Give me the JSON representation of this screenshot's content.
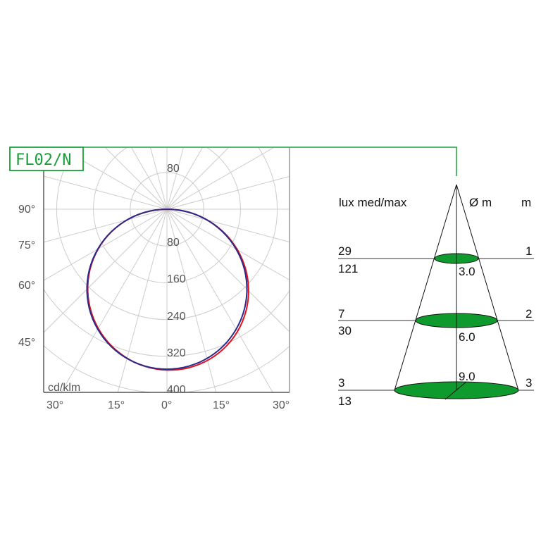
{
  "product_code": "FL02/N",
  "colors": {
    "accent": "#1a9e3a",
    "curve_c0": "#e0141e",
    "curve_c90": "#2a2a8a",
    "spot_fill": "#0f9a2e",
    "grid": "#cccccc"
  },
  "polar": {
    "unit_label": "cd/klm",
    "ring_labels": [
      "80",
      "80",
      "160",
      "240",
      "320",
      "400"
    ],
    "left_angle_labels": [
      "90°",
      "75°",
      "60°",
      "45°"
    ],
    "bottom_angle_labels": [
      "30°",
      "15°",
      "0°",
      "15°",
      "30°"
    ]
  },
  "chart_data": {
    "type": "polar",
    "r_max": 400,
    "r_ticks": [
      80,
      160,
      240,
      320,
      400
    ],
    "angle_step_deg": 15,
    "series": [
      {
        "color": "#e0141e",
        "peak": 350,
        "shape": "cosine"
      },
      {
        "color": "#2a2a8a",
        "peak": 348,
        "shape": "cosine"
      }
    ]
  },
  "cone": {
    "header_lux": "lux med/max",
    "header_diameter": "Ø m",
    "header_distance": "m",
    "rows": [
      {
        "lux_med": "29",
        "lux_max": "121",
        "diameter": "3.0",
        "distance": "1"
      },
      {
        "lux_med": "7",
        "lux_max": "30",
        "diameter": "6.0",
        "distance": "2"
      },
      {
        "lux_med": "3",
        "lux_max": "13",
        "diameter": "9.0",
        "distance": "3"
      }
    ]
  }
}
